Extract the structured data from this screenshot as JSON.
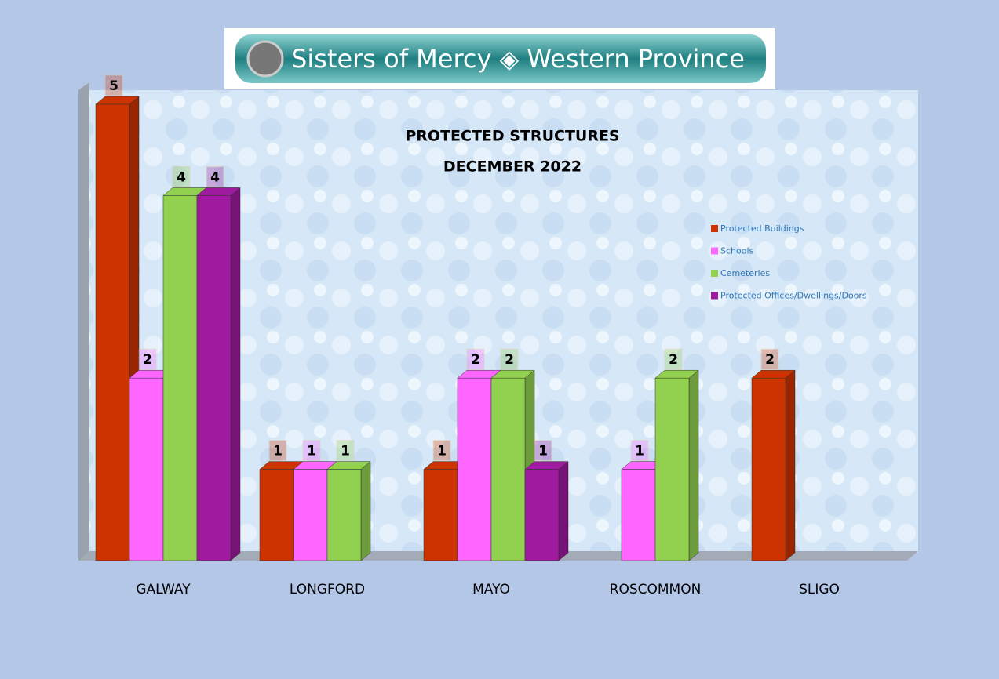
{
  "chart_data": {
    "type": "bar3d",
    "header": "Sisters of Mercy ◈ Western Province",
    "title": "PROTECTED STRUCTURES",
    "subtitle": "DECEMBER 2022",
    "categories": [
      "GALWAY",
      "LONGFORD",
      "MAYO",
      "ROSCOMMON",
      "SLIGO"
    ],
    "series": [
      {
        "name": "Protected Buildings",
        "color": "#cc3300",
        "values": [
          5,
          1,
          1,
          null,
          2
        ]
      },
      {
        "name": "Schools",
        "color": "#ff66ff",
        "values": [
          2,
          1,
          2,
          1,
          null
        ]
      },
      {
        "name": "Cemeteries",
        "color": "#92d050",
        "values": [
          4,
          1,
          2,
          2,
          null
        ]
      },
      {
        "name": "Protected Offices/Dwellings/Doors",
        "color": "#9e1a9e",
        "values": [
          4,
          null,
          1,
          null,
          null
        ]
      }
    ],
    "ylim": [
      0,
      5
    ],
    "legend": "right"
  }
}
